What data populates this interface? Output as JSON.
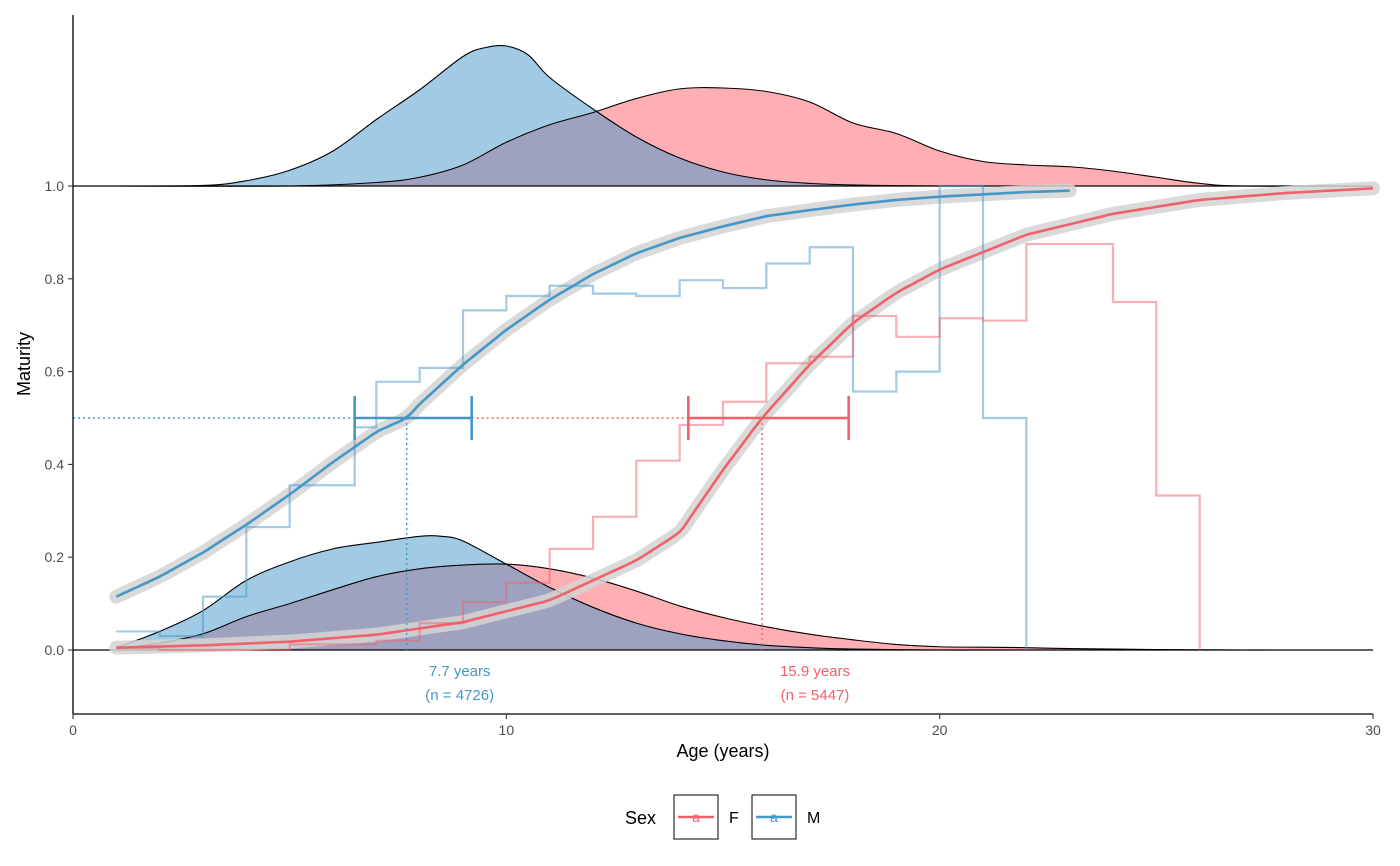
{
  "chart_data": {
    "type": "line",
    "xlabel": "Age (years)",
    "ylabel": "Maturity",
    "xlim": [
      0,
      30
    ],
    "ylim": [
      -0.14,
      1.0
    ],
    "x_ticks": [
      0,
      10,
      20,
      30
    ],
    "x_tick_labels": [
      "0",
      "10",
      "20",
      "30"
    ],
    "y_ticks": [
      0.0,
      0.2,
      0.4,
      0.6,
      0.8,
      1.0
    ],
    "y_tick_labels": [
      "0.0",
      "0.2",
      "0.4",
      "0.6",
      "0.8",
      "1.0"
    ],
    "grid": false,
    "legend": {
      "title": "Sex",
      "position": "bottom",
      "key_glyph": "a",
      "entries": [
        {
          "label": "F",
          "color": "#F0616A"
        },
        {
          "label": "M",
          "color": "#4597C8"
        }
      ]
    },
    "series": [
      {
        "name": "F",
        "color": "#F0616A",
        "band_color": "#d3d3d3",
        "logistic_fit": {
          "x": [
            1,
            3,
            5,
            7,
            9,
            11,
            13,
            14,
            15,
            15.9,
            17,
            18,
            19,
            20,
            22,
            24,
            26,
            28,
            30
          ],
          "y": [
            0.005,
            0.01,
            0.018,
            0.033,
            0.06,
            0.107,
            0.193,
            0.253,
            0.388,
            0.5,
            0.615,
            0.705,
            0.77,
            0.82,
            0.895,
            0.94,
            0.97,
            0.985,
            0.995
          ]
        },
        "l50": {
          "value": 15.9,
          "ci_low": 14.2,
          "ci_high": 17.9,
          "label": "15.9 years",
          "n_label": "(n = 5447)"
        },
        "observed_proportion": {
          "x_start": [
            1,
            2,
            3,
            4,
            5,
            6,
            7,
            8,
            9,
            10,
            11,
            12,
            13,
            14,
            15,
            16,
            17,
            18,
            19,
            20,
            21,
            22,
            23,
            24,
            25
          ],
          "y": [
            0.005,
            0.0,
            0.0,
            0.0,
            0.012,
            0.012,
            0.02,
            0.058,
            0.103,
            0.145,
            0.218,
            0.287,
            0.408,
            0.485,
            0.535,
            0.618,
            0.632,
            0.72,
            0.675,
            0.715,
            0.71,
            0.875,
            0.875,
            0.75,
            0.333
          ],
          "x_end": 26
        },
        "age_density": {
          "x": [
            1,
            2,
            3,
            4,
            5,
            6,
            7,
            8,
            9,
            10,
            11,
            12,
            13,
            14,
            15,
            16,
            17,
            18,
            19,
            20,
            21,
            22,
            23,
            24,
            25,
            26,
            27,
            28,
            30
          ],
          "y": [
            0.003,
            0.015,
            0.035,
            0.072,
            0.1,
            0.13,
            0.158,
            0.175,
            0.183,
            0.185,
            0.175,
            0.155,
            0.127,
            0.095,
            0.07,
            0.05,
            0.034,
            0.022,
            0.012,
            0.007,
            0.006,
            0.005,
            0.003,
            0.002,
            0.001,
            0.0005,
            0.0,
            0.0,
            0.0
          ]
        }
      },
      {
        "name": "M",
        "color": "#4597C8",
        "band_color": "#d3d3d3",
        "logistic_fit": {
          "x": [
            1,
            2,
            3,
            4,
            5,
            6,
            7,
            7.7,
            8,
            9,
            10,
            11,
            12,
            13,
            14,
            15,
            16,
            17,
            18,
            19,
            20,
            21,
            22,
            23
          ],
          "y": [
            0.115,
            0.158,
            0.21,
            0.27,
            0.335,
            0.405,
            0.47,
            0.5,
            0.53,
            0.615,
            0.69,
            0.755,
            0.81,
            0.855,
            0.888,
            0.913,
            0.935,
            0.948,
            0.96,
            0.97,
            0.977,
            0.982,
            0.987,
            0.99
          ]
        },
        "l50": {
          "value": 7.7,
          "ci_low": 6.5,
          "ci_high": 9.2,
          "label": "7.7 years",
          "n_label": "(n = 4726)"
        },
        "observed_proportion": {
          "x_start": [
            1,
            2,
            3,
            4,
            5,
            6,
            6.5,
            7,
            8,
            9,
            10,
            11,
            12,
            13,
            14,
            15,
            16,
            17,
            18,
            19,
            20,
            21
          ],
          "y": [
            0.04,
            0.03,
            0.115,
            0.265,
            0.355,
            0.355,
            0.48,
            0.578,
            0.608,
            0.732,
            0.763,
            0.785,
            0.768,
            0.763,
            0.797,
            0.78,
            0.833,
            0.868,
            0.557,
            0.6,
            1.0,
            0.5
          ],
          "x_end": 22
        },
        "age_density": {
          "x": [
            1,
            2,
            3,
            4,
            5,
            6,
            7,
            8,
            8.5,
            9,
            10,
            11,
            12,
            13,
            14,
            15,
            16,
            17,
            18,
            20,
            22,
            30
          ],
          "y": [
            0.005,
            0.04,
            0.085,
            0.15,
            0.19,
            0.218,
            0.232,
            0.245,
            0.245,
            0.235,
            0.185,
            0.135,
            0.092,
            0.058,
            0.035,
            0.02,
            0.01,
            0.005,
            0.002,
            0.0,
            0.0,
            0.0
          ]
        }
      }
    ],
    "top_density": [
      {
        "name": "M",
        "color": "#A1CAE4",
        "x": [
          1,
          3,
          4,
          5,
          6,
          7,
          8,
          9,
          9.5,
          10,
          10.5,
          11,
          12,
          13,
          14,
          15,
          16,
          17,
          18,
          19,
          20
        ],
        "y": [
          0.0,
          0.003,
          0.03,
          0.09,
          0.2,
          0.38,
          0.55,
          0.74,
          0.79,
          0.8,
          0.75,
          0.62,
          0.44,
          0.28,
          0.16,
          0.08,
          0.035,
          0.015,
          0.006,
          0.002,
          0.0
        ]
      },
      {
        "name": "F",
        "color": "#FFAEB4",
        "x": [
          1,
          5,
          7,
          8,
          9,
          10,
          11,
          12,
          13,
          14,
          15,
          16,
          17,
          18,
          19,
          20,
          21,
          22,
          23,
          24,
          25,
          26,
          27,
          30
        ],
        "y": [
          0.0,
          0.0,
          0.02,
          0.05,
          0.12,
          0.25,
          0.35,
          0.42,
          0.5,
          0.555,
          0.56,
          0.54,
          0.48,
          0.36,
          0.3,
          0.2,
          0.14,
          0.12,
          0.11,
          0.085,
          0.05,
          0.015,
          0.0,
          0.0
        ]
      }
    ],
    "overlap_color": "#9FA1C0"
  }
}
